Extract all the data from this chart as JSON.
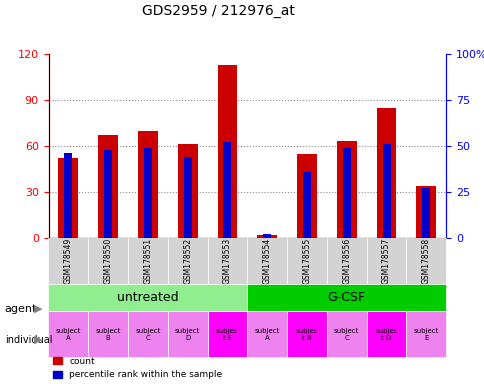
{
  "title": "GDS2959 / 212976_at",
  "samples": [
    "GSM178549",
    "GSM178550",
    "GSM178551",
    "GSM178552",
    "GSM178553",
    "GSM178554",
    "GSM178555",
    "GSM178556",
    "GSM178557",
    "GSM178558"
  ],
  "count_values": [
    52,
    67,
    70,
    61,
    113,
    2,
    55,
    63,
    85,
    34
  ],
  "percentile_values": [
    46,
    48,
    49,
    44,
    52,
    2,
    36,
    49,
    51,
    27
  ],
  "agent_groups": [
    {
      "label": "untreated",
      "start": 0,
      "end": 5,
      "color": "#90EE90"
    },
    {
      "label": "G-CSF",
      "start": 5,
      "end": 10,
      "color": "#00CC00"
    }
  ],
  "individual_labels": [
    "subject\nA",
    "subject\nB",
    "subject\nC",
    "subject\nD",
    "subjec\nt E",
    "subject\nA",
    "subjec\nt B",
    "subject\nC",
    "subjec\nt D",
    "subject\nE"
  ],
  "individual_colors": [
    "#EE82EE",
    "#EE82EE",
    "#EE82EE",
    "#EE82EE",
    "#FF00FF",
    "#EE82EE",
    "#FF00FF",
    "#EE82EE",
    "#FF00FF",
    "#EE82EE"
  ],
  "bar_color_red": "#CC0000",
  "bar_color_blue": "#0000CC",
  "bar_width": 0.5,
  "ylim_left": [
    0,
    120
  ],
  "ylim_right": [
    0,
    100
  ],
  "yticks_left": [
    0,
    30,
    60,
    90,
    120
  ],
  "yticks_right": [
    0,
    25,
    50,
    75,
    100
  ],
  "ytick_labels_right": [
    "0",
    "25",
    "50",
    "75",
    "100%"
  ],
  "background_color": "#FFFFFF",
  "plot_bg_color": "#FFFFFF",
  "grid_color": "#888888"
}
